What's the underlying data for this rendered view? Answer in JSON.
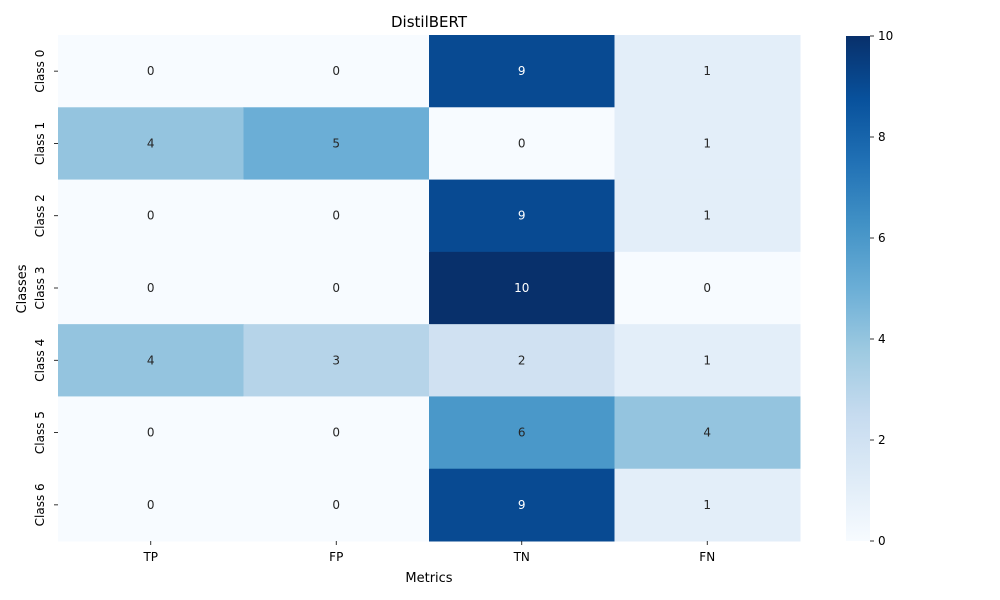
{
  "chart_data": {
    "type": "heatmap",
    "title": "DistilBERT",
    "xlabel": "Metrics",
    "ylabel": "Classes",
    "x_categories": [
      "TP",
      "FP",
      "TN",
      "FN"
    ],
    "y_categories": [
      "Class 0",
      "Class 1",
      "Class 2",
      "Class 3",
      "Class 4",
      "Class 5",
      "Class 6"
    ],
    "values": [
      [
        0,
        0,
        9,
        1
      ],
      [
        4,
        5,
        0,
        1
      ],
      [
        0,
        0,
        9,
        1
      ],
      [
        0,
        0,
        10,
        0
      ],
      [
        4,
        3,
        2,
        1
      ],
      [
        0,
        0,
        6,
        4
      ],
      [
        0,
        0,
        9,
        1
      ]
    ],
    "colorbar": {
      "min": 0,
      "max": 10,
      "ticks": [
        0,
        2,
        4,
        6,
        8,
        10
      ]
    },
    "colormap": "Blues",
    "grid": false
  }
}
